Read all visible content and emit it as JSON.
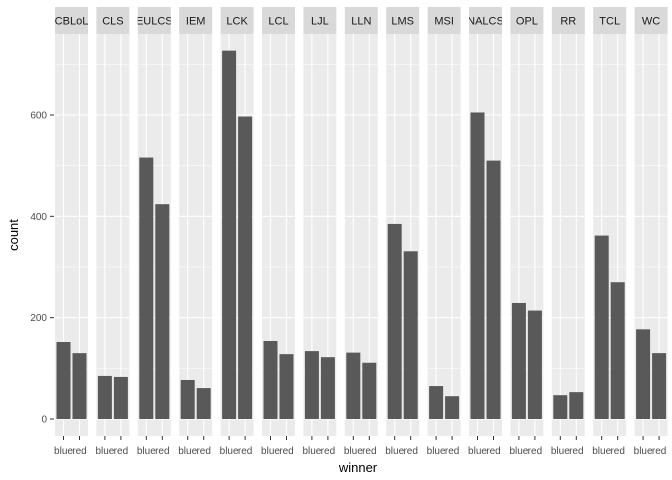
{
  "chart_data": {
    "type": "bar",
    "facet_by": "league",
    "xlabel": "winner",
    "ylabel": "count",
    "categories": [
      "blue",
      "red"
    ],
    "ylim": [
      0,
      740
    ],
    "yticks": [
      0,
      200,
      400,
      600
    ],
    "grid": true,
    "bar_color": "#595959",
    "panel_bg": "#ebebeb",
    "strip_bg": "#d9d9d9",
    "gridline_color": "#ffffff",
    "facets": [
      {
        "name": "CBLoL",
        "values": [
          152,
          130
        ]
      },
      {
        "name": "CLS",
        "values": [
          85,
          83
        ]
      },
      {
        "name": "EULCS",
        "values": [
          516,
          424
        ]
      },
      {
        "name": "IEM",
        "values": [
          77,
          61
        ]
      },
      {
        "name": "LCK",
        "values": [
          727,
          597
        ]
      },
      {
        "name": "LCL",
        "values": [
          154,
          128
        ]
      },
      {
        "name": "LJL",
        "values": [
          134,
          122
        ]
      },
      {
        "name": "LLN",
        "values": [
          131,
          111
        ]
      },
      {
        "name": "LMS",
        "values": [
          385,
          331
        ]
      },
      {
        "name": "MSI",
        "values": [
          65,
          45
        ]
      },
      {
        "name": "NALCS",
        "values": [
          605,
          510
        ]
      },
      {
        "name": "OPL",
        "values": [
          229,
          214
        ]
      },
      {
        "name": "RR",
        "values": [
          47,
          53
        ]
      },
      {
        "name": "TCL",
        "values": [
          362,
          270
        ]
      },
      {
        "name": "WC",
        "values": [
          177,
          130
        ]
      }
    ]
  }
}
